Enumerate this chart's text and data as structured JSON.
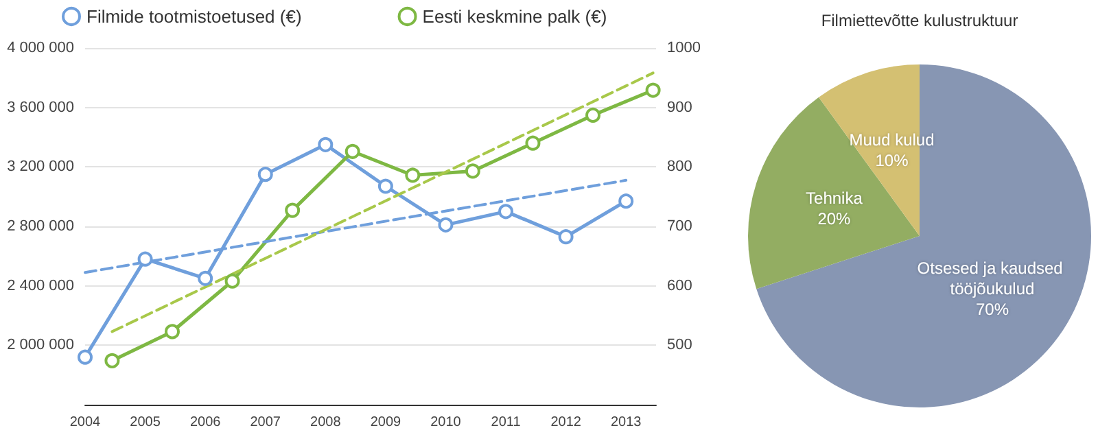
{
  "chart_data": [
    {
      "type": "line",
      "legend": "top",
      "grid": "y",
      "marker": "circle",
      "line_style": "solid",
      "xlim": [
        2004,
        2013.5
      ],
      "xticks": [
        2004,
        2005,
        2006,
        2007,
        2008,
        2009,
        2010,
        2011,
        2012,
        2013
      ],
      "ylim": [
        1600000,
        4000000
      ],
      "yticks": [
        {
          "value": 2000000,
          "label": "2 000 000"
        },
        {
          "value": 2400000,
          "label": "2 400 000"
        },
        {
          "value": 2800000,
          "label": "2 800 000"
        },
        {
          "value": 3200000,
          "label": "3 200 000"
        },
        {
          "value": 3600000,
          "label": "3 600 000"
        },
        {
          "value": 4000000,
          "label": "4 000 000"
        }
      ],
      "y2lim": [
        400,
        1000
      ],
      "y2ticks": [
        500,
        600,
        700,
        800,
        900,
        1000
      ],
      "series": [
        {
          "name": "Filmide tootmistoetused (€)",
          "color": "#6f9fdc",
          "x": [
            2004,
            2005,
            2006,
            2007,
            2008,
            2009,
            2010,
            2011,
            2012,
            2013
          ],
          "values": [
            1920000,
            2580000,
            2450000,
            3150000,
            3350000,
            3070000,
            2810000,
            2900000,
            2730000,
            2970000
          ]
        },
        {
          "name": "Eesti keskmine palk (€)",
          "color": "#7eb843",
          "axis": "y2",
          "x": [
            2004.45,
            2005.45,
            2006.45,
            2007.45,
            2008.45,
            2009.45,
            2010.45,
            2011.45,
            2012.45,
            2013.45
          ],
          "values": [
            474,
            523,
            608,
            727,
            826,
            786,
            793,
            840,
            887,
            929
          ]
        },
        {
          "type": "line",
          "color": "#6f9fdc",
          "line_style": "dashed",
          "marker": "none",
          "x": [
            2004,
            2013
          ],
          "values": [
            2490000,
            3110000
          ]
        },
        {
          "type": "line",
          "color": "#a8c84a",
          "line_style": "dashed",
          "marker": "none",
          "axis": "y2",
          "x": [
            2004.45,
            2013.45
          ],
          "values": [
            523,
            958
          ]
        }
      ]
    },
    {
      "type": "pie",
      "title": "Filmiettevõtte kulustruktuur",
      "categories": [
        "Otsesed ja kaudsed tööjõukulud",
        "Tehnika",
        "Muud kulud"
      ],
      "values": [
        70,
        20,
        10
      ],
      "colors": [
        "#8796b3",
        "#93ad62",
        "#d4c072"
      ],
      "value_labels": [
        "70%",
        "20%",
        "10%"
      ]
    }
  ]
}
